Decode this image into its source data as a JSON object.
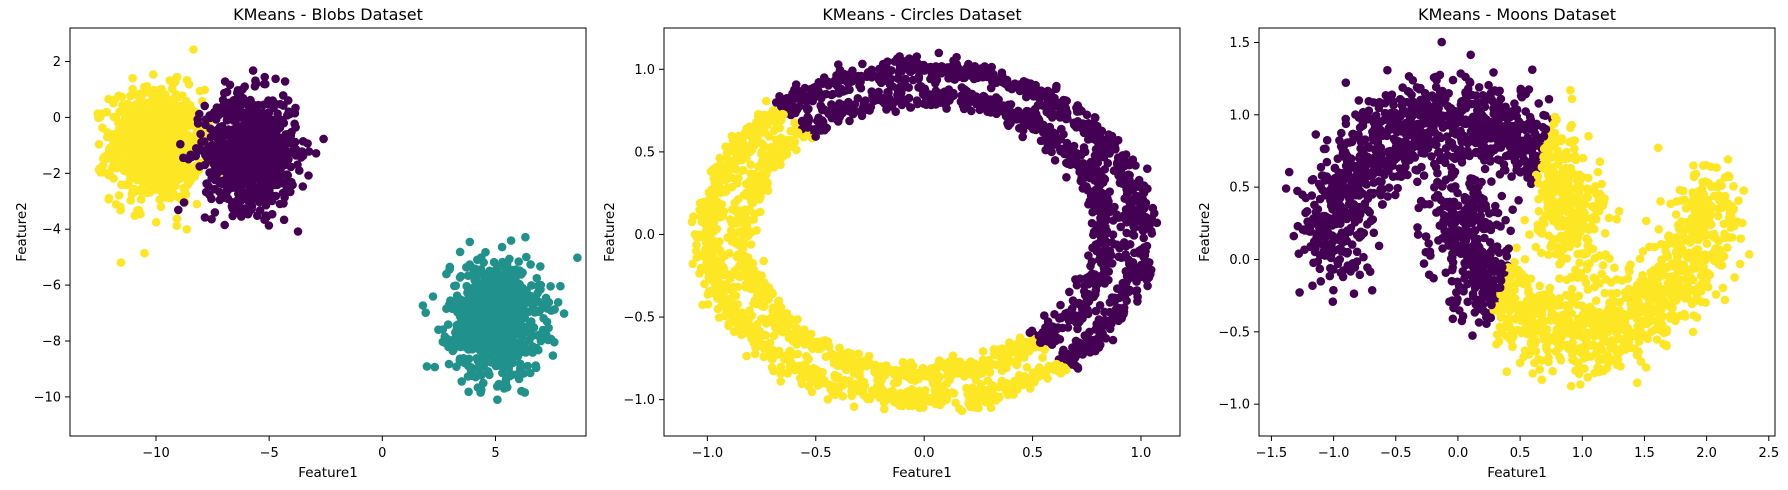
{
  "colors": {
    "purple": "#440154",
    "teal": "#21918c",
    "yellow": "#fde725",
    "axis": "#000000",
    "background": "#ffffff"
  },
  "chart_data": [
    {
      "type": "scatter",
      "title": "KMeans - Blobs Dataset",
      "xlabel": "Feature1",
      "ylabel": "Feature2",
      "xlim": [
        -13.8,
        9.0
      ],
      "ylim": [
        -11.4,
        3.2
      ],
      "xticks": [
        -10,
        -5,
        0,
        5
      ],
      "yticks": [
        -10,
        -8,
        -6,
        -4,
        -2,
        0,
        2
      ],
      "xtick_labels": [
        "−10",
        "−5",
        "0",
        "5"
      ],
      "ytick_labels": [
        "−10",
        "−8",
        "−6",
        "−4",
        "−2",
        "0",
        "2"
      ],
      "grid": false,
      "clusters": [
        {
          "color": "yellow",
          "shape": "gaussian",
          "center": [
            -10.0,
            -1.0
          ],
          "spread": [
            1.0,
            1.0
          ],
          "n": 900
        },
        {
          "color": "purple",
          "shape": "gaussian",
          "center": [
            -5.8,
            -1.2
          ],
          "spread": [
            1.0,
            1.0
          ],
          "n": 900
        },
        {
          "color": "teal",
          "shape": "gaussian",
          "center": [
            5.0,
            -7.2
          ],
          "spread": [
            1.0,
            1.0
          ],
          "n": 900
        }
      ]
    },
    {
      "type": "scatter",
      "title": "KMeans - Circles Dataset",
      "xlabel": "Feature1",
      "ylabel": "Feature2",
      "xlim": [
        -1.2,
        1.18
      ],
      "ylim": [
        -1.22,
        1.25
      ],
      "xticks": [
        -1.0,
        -0.5,
        0.0,
        0.5,
        1.0
      ],
      "yticks": [
        -1.0,
        -0.5,
        0.0,
        0.5,
        1.0
      ],
      "xtick_labels": [
        "−1.0",
        "−0.5",
        "0.0",
        "0.5",
        "1.0"
      ],
      "ytick_labels": [
        "−1.0",
        "−0.5",
        "0.0",
        "0.5",
        "1.0"
      ],
      "grid": false,
      "rings": [
        {
          "radius": 1.0,
          "noise": 0.035,
          "n": 1400
        },
        {
          "radius": 0.84,
          "noise": 0.035,
          "n": 1200
        }
      ],
      "split": {
        "boundary": "line",
        "through_a": [
          -0.7,
          0.8
        ],
        "through_b": [
          0.5,
          -0.62
        ],
        "side_a": "yellow",
        "side_b": "purple"
      }
    },
    {
      "type": "scatter",
      "title": "KMeans - Moons Dataset",
      "xlabel": "Feature1",
      "ylabel": "Feature2",
      "xlim": [
        -1.6,
        2.55
      ],
      "ylim": [
        -1.22,
        1.6
      ],
      "xticks": [
        -1.5,
        -1.0,
        -0.5,
        0.0,
        0.5,
        1.0,
        1.5,
        2.0,
        2.5
      ],
      "yticks": [
        -1.0,
        -0.5,
        0.0,
        0.5,
        1.0,
        1.5
      ],
      "xtick_labels": [
        "−1.5",
        "−1.0",
        "−0.5",
        "0.0",
        "0.5",
        "1.0",
        "1.5",
        "2.0",
        "2.5"
      ],
      "ytick_labels": [
        "−1.0",
        "−0.5",
        "0.0",
        "0.5",
        "1.0",
        "1.5"
      ],
      "grid": false,
      "moons": {
        "noise": 0.15,
        "n_per_moon": 1300
      },
      "split": {
        "boundary": "line",
        "through_a": [
          0.78,
          1.02
        ],
        "through_b": [
          0.2,
          -0.6
        ],
        "side_left": "purple",
        "side_right": "yellow"
      }
    }
  ]
}
